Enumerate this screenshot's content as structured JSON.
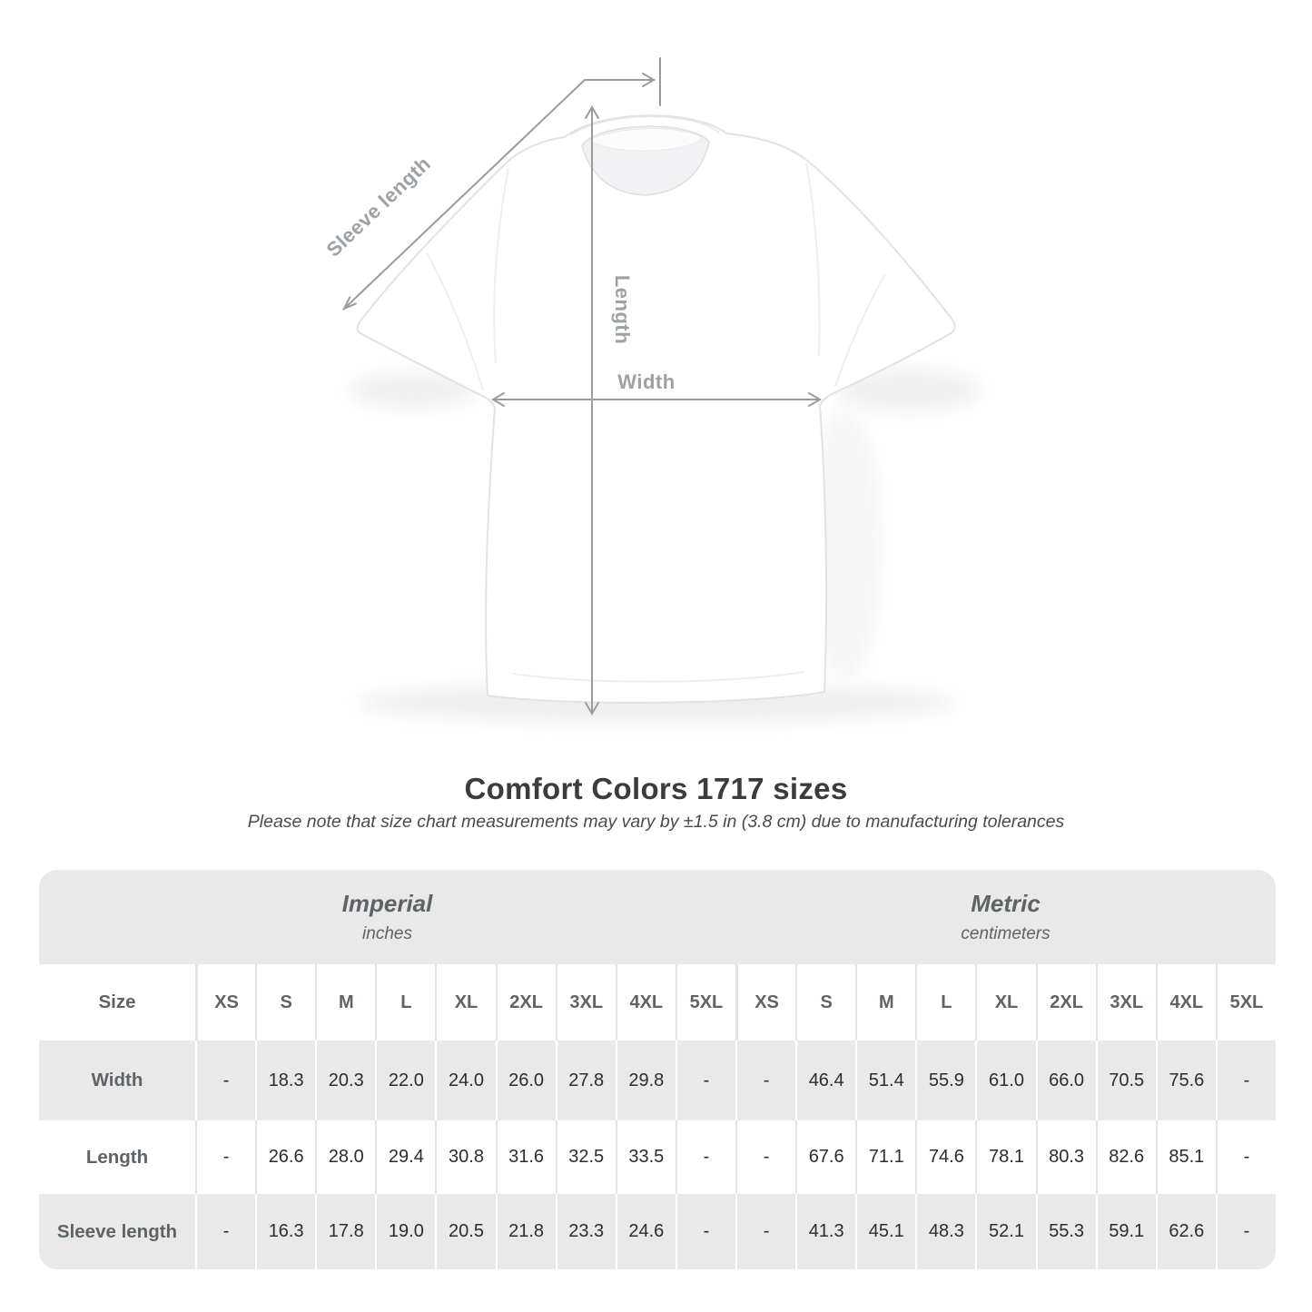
{
  "title": "Comfort Colors 1717 sizes",
  "subtitle": "Please note that size chart measurements may vary by ±1.5 in (3.8 cm) due to manufacturing tolerances",
  "diagram": {
    "sleeve_label": "Sleeve length",
    "length_label": "Length",
    "width_label": "Width"
  },
  "colors": {
    "table_band_gray": "#e9e9e9",
    "separator_on_white": "#e3e3e3",
    "separator_on_gray": "#ffffff",
    "header_text": "#5d6468",
    "value_text": "#2d2d2d",
    "measure_line": "#9b9b9b",
    "measure_label": "#9ba1a5",
    "title_text": "#3c3c3c"
  },
  "chart_data": {
    "type": "table",
    "title": "Comfort Colors 1717 sizes",
    "note": "Please note that size chart measurements may vary by ±1.5 in (3.8 cm) due to manufacturing tolerances",
    "corner_label": "Size",
    "column_groups": [
      {
        "name": "Imperial",
        "sub": "inches"
      },
      {
        "name": "Metric",
        "sub": "centimeters"
      }
    ],
    "columns": [
      "XS",
      "S",
      "M",
      "L",
      "XL",
      "2XL",
      "3XL",
      "4XL",
      "5XL"
    ],
    "rows": [
      {
        "label": "Width",
        "imperial": [
          "-",
          "18.3",
          "20.3",
          "22.0",
          "24.0",
          "26.0",
          "27.8",
          "29.8",
          "-"
        ],
        "metric": [
          "-",
          "46.4",
          "51.4",
          "55.9",
          "61.0",
          "66.0",
          "70.5",
          "75.6",
          "-"
        ]
      },
      {
        "label": "Length",
        "imperial": [
          "-",
          "26.6",
          "28.0",
          "29.4",
          "30.8",
          "31.6",
          "32.5",
          "33.5",
          "-"
        ],
        "metric": [
          "-",
          "67.6",
          "71.1",
          "74.6",
          "78.1",
          "80.3",
          "82.6",
          "85.1",
          "-"
        ]
      },
      {
        "label": "Sleeve length",
        "imperial": [
          "-",
          "16.3",
          "17.8",
          "19.0",
          "20.5",
          "21.8",
          "23.3",
          "24.6",
          "-"
        ],
        "metric": [
          "-",
          "41.3",
          "45.1",
          "48.3",
          "52.1",
          "55.3",
          "59.1",
          "62.6",
          "-"
        ]
      }
    ]
  }
}
